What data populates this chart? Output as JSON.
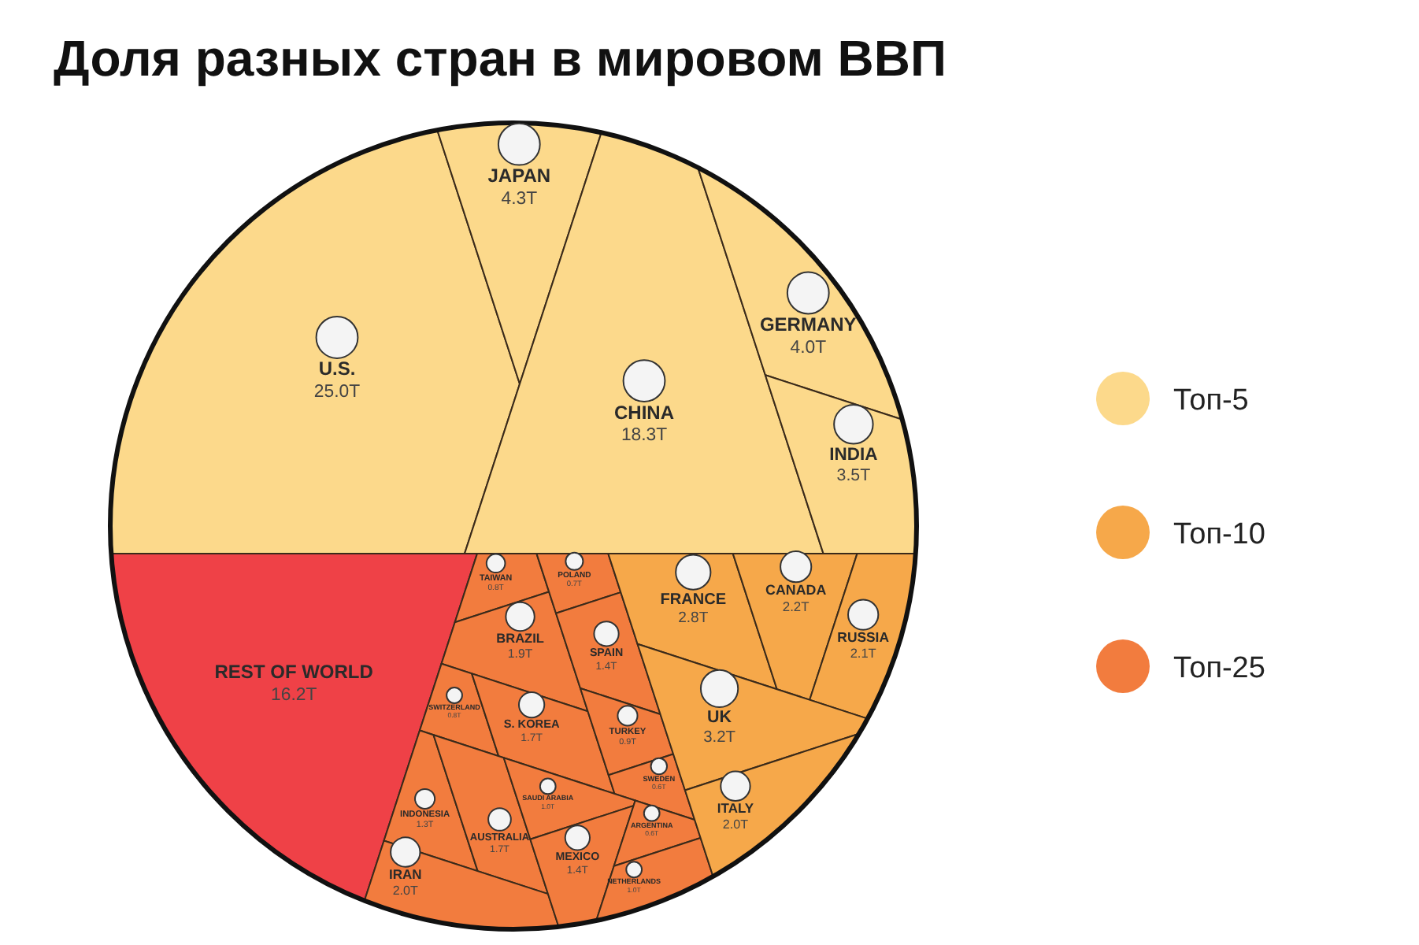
{
  "chart_data": {
    "type": "other",
    "title": "Доля разных стран в мировом ВВП",
    "categories": [
      "U.S.",
      "JAPAN",
      "CHINA",
      "GERMANY",
      "INDIA",
      "FRANCE",
      "CANADA",
      "RUSSIA",
      "UK",
      "ITALY",
      "TAIWAN",
      "BRAZIL",
      "SWITZERLAND",
      "S. KOREA",
      "POLAND",
      "SPAIN",
      "TURKEY",
      "SWEDEN",
      "INDONESIA",
      "AUSTRALIA",
      "IRAN",
      "SAUDI ARABIA",
      "MEXICO",
      "ARGENTINA",
      "NETHERLANDS",
      "REST OF WORLD"
    ],
    "series": [
      {
        "name": "Топ-5",
        "color": "#fcd98b",
        "values": [
          25.0,
          4.3,
          18.3,
          4.0,
          3.5,
          null,
          null,
          null,
          null,
          null,
          null,
          null,
          null,
          null,
          null,
          null,
          null,
          null,
          null,
          null,
          null,
          null,
          null,
          null,
          null,
          null
        ],
        "value_labels": [
          "25.0T",
          "4.3T",
          "18.3T",
          "4.0T",
          "3.5T",
          null,
          null,
          null,
          null,
          null,
          null,
          null,
          null,
          null,
          null,
          null,
          null,
          null,
          null,
          null,
          null,
          null,
          null,
          null,
          null,
          null
        ]
      },
      {
        "name": "Топ-10",
        "color": "#f6a84a",
        "values": [
          null,
          null,
          null,
          null,
          null,
          2.8,
          2.2,
          2.1,
          3.2,
          2.0,
          null,
          null,
          null,
          null,
          null,
          null,
          null,
          null,
          null,
          null,
          null,
          null,
          null,
          null,
          null,
          null
        ],
        "value_labels": [
          null,
          null,
          null,
          null,
          null,
          "2.8T",
          "2.2T",
          "2.1T",
          "3.2T",
          "2.0T",
          null,
          null,
          null,
          null,
          null,
          null,
          null,
          null,
          null,
          null,
          null,
          null,
          null,
          null,
          null,
          null
        ]
      },
      {
        "name": "Топ-25",
        "color": "#f27c3e",
        "values": [
          null,
          null,
          null,
          null,
          null,
          null,
          null,
          null,
          null,
          null,
          0.8,
          1.9,
          0.8,
          1.7,
          0.7,
          1.4,
          0.9,
          0.6,
          1.3,
          1.7,
          2.0,
          1.0,
          1.4,
          0.6,
          1.0,
          null
        ],
        "value_labels": [
          null,
          null,
          null,
          null,
          null,
          null,
          null,
          null,
          null,
          null,
          "0.8T",
          "1.9T",
          "0.8T",
          "1.7T",
          "0.7T",
          "1.4T",
          "0.9T",
          "0.6T",
          "1.3T",
          "1.7T",
          "2.0T",
          "1.0T",
          "1.4T",
          "0.6T",
          "1.0T",
          null
        ]
      },
      {
        "color": "#ef4147",
        "values": [
          null,
          null,
          null,
          null,
          null,
          null,
          null,
          null,
          null,
          null,
          null,
          null,
          null,
          null,
          null,
          null,
          null,
          null,
          null,
          null,
          null,
          null,
          null,
          null,
          null,
          16.2
        ],
        "value_labels": [
          null,
          null,
          null,
          null,
          null,
          null,
          null,
          null,
          null,
          null,
          null,
          null,
          null,
          null,
          null,
          null,
          null,
          null,
          null,
          null,
          null,
          null,
          null,
          null,
          null,
          "16.2T"
        ]
      }
    ],
    "legend": "right"
  }
}
